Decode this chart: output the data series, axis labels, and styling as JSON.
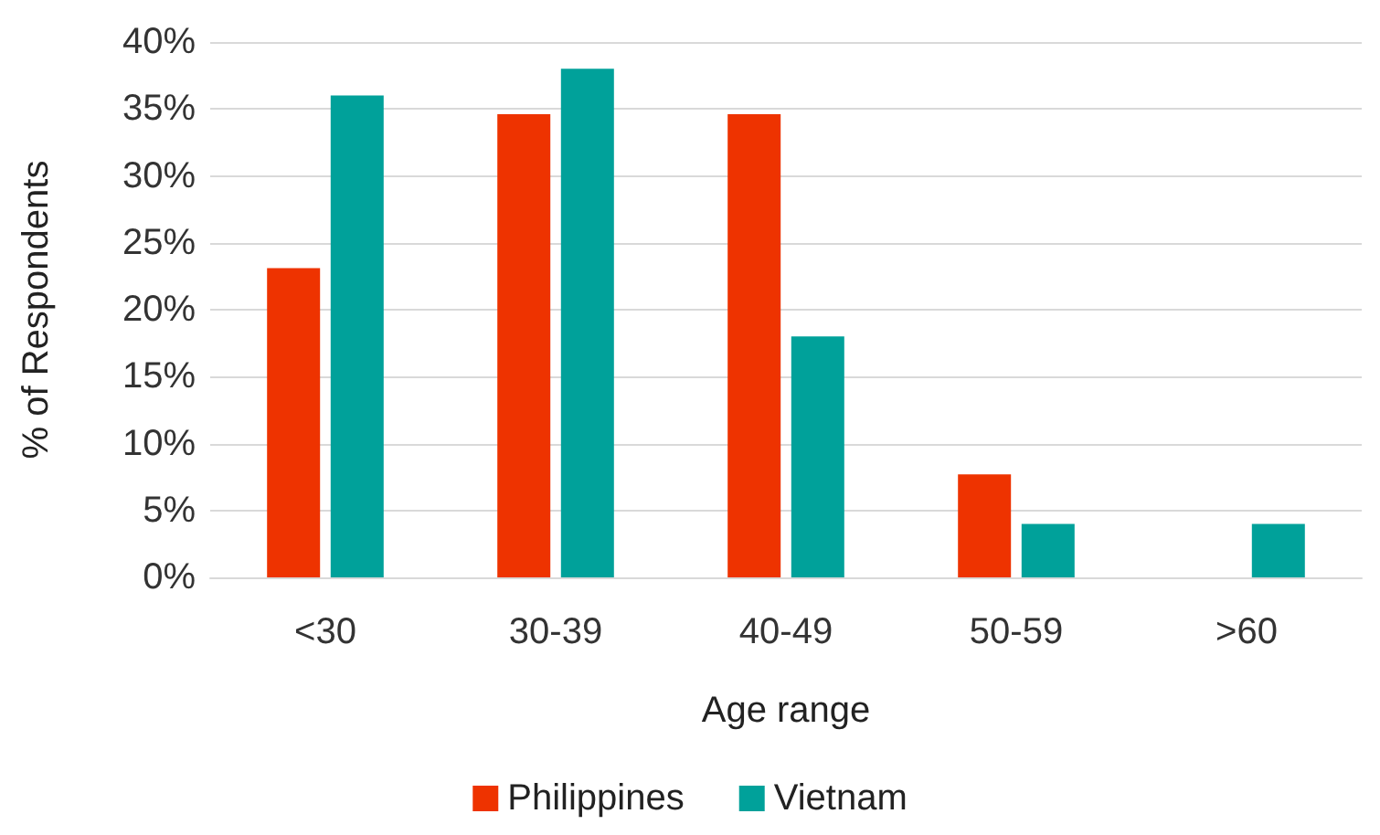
{
  "chart_data": {
    "type": "bar",
    "xlabel": "Age range",
    "ylabel": "% of Respondents",
    "categories": [
      "<30",
      "30-39",
      "40-49",
      "50-59",
      ">60"
    ],
    "series": [
      {
        "name": "Philippines",
        "color": "#ee3300",
        "values": [
          23.1,
          34.6,
          34.6,
          7.7,
          0
        ]
      },
      {
        "name": "Vietnam",
        "color": "#00a19a",
        "values": [
          36,
          38,
          18,
          4,
          4
        ]
      }
    ],
    "ylim": [
      0,
      40
    ],
    "yticks": [
      {
        "value": 0,
        "label": "0%"
      },
      {
        "value": 5,
        "label": "5%"
      },
      {
        "value": 10,
        "label": "10%"
      },
      {
        "value": 15,
        "label": "15%"
      },
      {
        "value": 20,
        "label": "20%"
      },
      {
        "value": 25,
        "label": "25%"
      },
      {
        "value": 30,
        "label": "30%"
      },
      {
        "value": 35,
        "label": "35%"
      },
      {
        "value": 40,
        "label": "40%"
      }
    ],
    "grid": "y",
    "legend": "bottom"
  }
}
